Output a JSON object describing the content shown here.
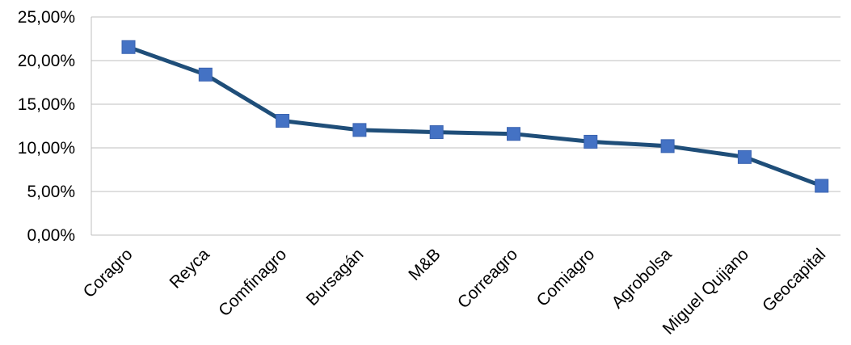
{
  "chart_data": {
    "type": "line",
    "title": "",
    "xlabel": "",
    "ylabel": "",
    "categories": [
      "Coragro",
      "Reyca",
      "Comfinagro",
      "Bursagán",
      "M&B",
      "Correagro",
      "Comiagro",
      "Agrobolsa",
      "Miguel Quijano",
      "Geocapital"
    ],
    "series": [
      {
        "values": [
          0.2155,
          0.184,
          0.131,
          0.1205,
          0.118,
          0.116,
          0.107,
          0.102,
          0.0895,
          0.0565
        ]
      }
    ],
    "ylim": [
      0,
      0.25
    ],
    "yticks": [
      0,
      0.05,
      0.1,
      0.15,
      0.2,
      0.25
    ],
    "ytick_labels": [
      "0,00%",
      "5,00%",
      "10,00%",
      "15,00%",
      "20,00%",
      "25,00%"
    ],
    "grid": "horizontal",
    "legend": "none",
    "colors": {
      "line": "#1f4e79",
      "marker": "#4472c4",
      "grid": "#bfbfbf",
      "text": "#000000"
    }
  }
}
